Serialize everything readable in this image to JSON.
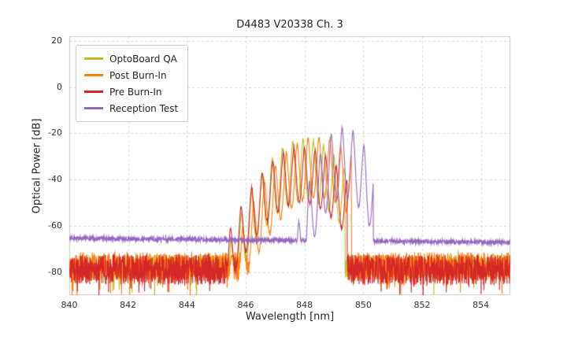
{
  "chart_data": {
    "type": "line",
    "title": "D4483 V20338 Ch. 3",
    "xlabel": "Wavelength [nm]",
    "ylabel": "Optical Power [dB]",
    "xlim": [
      840,
      855
    ],
    "ylim": [
      -90,
      22
    ],
    "x_ticks": [
      840,
      842,
      844,
      846,
      848,
      850,
      852,
      854
    ],
    "y_ticks": [
      20,
      0,
      -20,
      -40,
      -60,
      -80
    ],
    "grid": true,
    "grid_color": "#d9d9d9",
    "axes_border_color": "#c8c8c8",
    "legend_position": "upper left",
    "description": "Optical spectra of a multimode laser channel measured at four test stages; noise floor near -78 dB (OptoBoard QA / Post Burn-In / Pre Burn-In) with longitudinal-mode peaks between ~845.5 and ~849.5 nm reaching -21 to -26 dB; Reception Test trace has a flat -65 to -67 dB floor with peaks shifted to ~848.5-850.3 nm reaching -17 dB and a sharp cutoff at 850.3 nm.",
    "series": [
      {
        "name": "OptoBoard QA",
        "color": "#bcbd22",
        "noise_floor": -78,
        "noise_amp": 5.5,
        "seed": 11,
        "signal": {
          "peak_db": -22.5,
          "center_nm": 848.0,
          "curvature": 7,
          "mode_spacing_nm": 0.35,
          "mode_phase_nm": 847.95,
          "mode_depth_db": 26,
          "cutoff_left_nm": 845.15,
          "cutoff_right_nm": 849.38
        }
      },
      {
        "name": "Post Burn-In",
        "color": "#ff7f0e",
        "noise_floor": -77.5,
        "noise_amp": 6,
        "seed": 22,
        "signal": {
          "peak_db": -21.5,
          "center_nm": 848.45,
          "curvature": 6,
          "mode_spacing_nm": 0.37,
          "mode_phase_nm": 848.12,
          "mode_depth_db": 26,
          "cutoff_left_nm": 845.3,
          "cutoff_right_nm": 849.6
        }
      },
      {
        "name": "Pre Burn-In",
        "color": "#d62728",
        "noise_floor": -79,
        "noise_amp": 6.5,
        "seed": 33,
        "signal": {
          "peak_db": -26,
          "center_nm": 847.9,
          "curvature": 6,
          "mode_spacing_nm": 0.36,
          "mode_phase_nm": 848.0,
          "mode_depth_db": 24,
          "cutoff_left_nm": 845.35,
          "cutoff_right_nm": 849.45
        }
      },
      {
        "name": "Reception Test",
        "color": "#9467bd",
        "noise_floor": -65.4,
        "noise_floor_right": -67.2,
        "noise_amp": 0.9,
        "seed": 44,
        "signal": {
          "peak_db": -17.5,
          "center_nm": 849.35,
          "curvature": 17,
          "mode_spacing_nm": 0.37,
          "mode_phase_nm": 849.28,
          "mode_depth_db": 30,
          "cutoff_left_nm": 847.3,
          "cutoff_right_nm": 850.34
        }
      }
    ]
  }
}
